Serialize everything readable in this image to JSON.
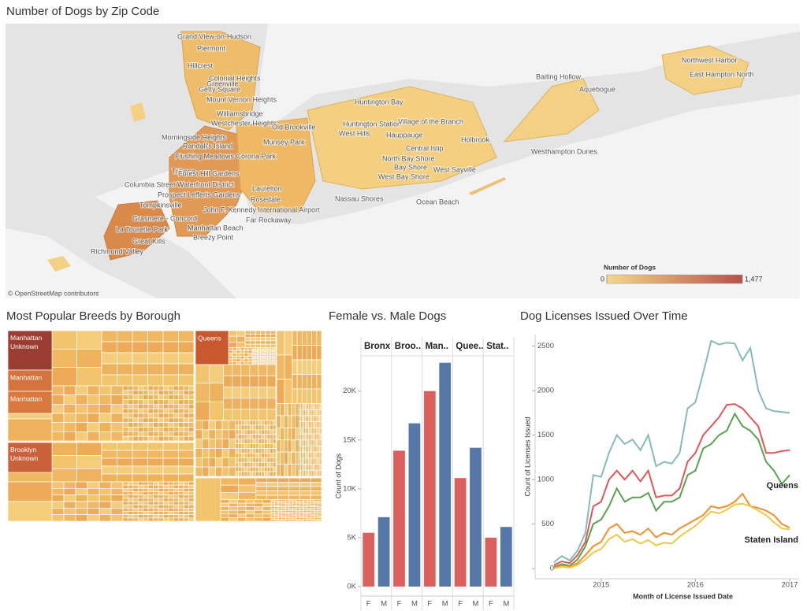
{
  "chart_data": [
    {
      "type": "map",
      "title": "Number of Dogs by Zip Code",
      "places": [
        "Grand View-on-Hudson",
        "Piermont",
        "Greenville",
        "Hillcrest",
        "Colonial Heights",
        "Getty Square",
        "Mount Vernon Heights",
        "Williamsbridge",
        "Westchester Heights",
        "Morningside Heights",
        "Randall's Island",
        "Flushing Meadows Corona Park",
        "Tribeca",
        "Forest Hill Gardens",
        "Columbia Street Waterfront District",
        "Prospect Lefferts Gardens",
        "Tompkinsville",
        "Grasmere - Concord",
        "La Tourette Park",
        "Great Kills",
        "Richmond Valley",
        "John F. Kennedy International Airport",
        "Rosedale",
        "Laurelton",
        "Far Rockaway",
        "Manhattan Beach",
        "Breezy Point",
        "Munsey Park",
        "Old Brookville",
        "Huntington Bay",
        "Huntington Station",
        "West Hills",
        "Village of the Branch",
        "Hauppauge",
        "Central Islip",
        "Holbrook",
        "North Bay Shore",
        "Bay Shore",
        "West Bay Shore",
        "West Sayville",
        "Nassau Shores",
        "Ocean Beach",
        "Westhampton Dunes",
        "Baiting Hollow",
        "Aquebogue",
        "Northwest Harbor",
        "East Hampton North"
      ],
      "attribution": "© OpenStreetMap contributors",
      "legend_title": "Number of Dogs",
      "color_range": [
        "#f5d78a",
        "#b5524a"
      ],
      "color_scale": [
        0,
        {
          "value": 1477,
          "label": "1,477"
        }
      ]
    },
    {
      "type": "treemap",
      "title": "Most Popular Breeds by Borough",
      "labels": [
        "Manhattan Unknown",
        "Manhattan",
        "Manhattan",
        "Queens",
        "Brooklyn Unknown"
      ]
    },
    {
      "type": "bar",
      "title": "Female vs. Male Dogs",
      "categories": [
        "Bronx",
        "Broo..",
        "Man..",
        "Quee..",
        "Stat.."
      ],
      "series": [
        {
          "name": "F",
          "color": "#d9605c",
          "values": [
            5500,
            13900,
            20000,
            11100,
            5000
          ]
        },
        {
          "name": "M",
          "color": "#5578a8",
          "values": [
            7100,
            16700,
            22900,
            14200,
            6100
          ]
        }
      ],
      "y_label": "Count of Dogs",
      "ylim": [
        -970,
        23600
      ],
      "yticks": [
        {
          "value": 0,
          "label": "0K"
        },
        {
          "value": 5000,
          "label": "5K"
        },
        {
          "value": 10000,
          "label": "10K"
        },
        {
          "value": 15000,
          "label": "15K"
        },
        {
          "value": 20000,
          "label": "20K"
        }
      ]
    },
    {
      "type": "line",
      "title": "Dog Licenses Issued Over Time",
      "x": [
        2014.5,
        2014.583,
        2014.667,
        2014.75,
        2014.833,
        2014.917,
        2015,
        2015.083,
        2015.167,
        2015.25,
        2015.333,
        2015.417,
        2015.5,
        2015.583,
        2015.667,
        2015.75,
        2015.833,
        2015.917,
        2016,
        2016.083,
        2016.167,
        2016.25,
        2016.333,
        2016.417,
        2016.5,
        2016.583,
        2016.667,
        2016.75,
        2016.833,
        2016.917,
        2017
      ],
      "series": [
        {
          "color": "#86bcb6",
          "values": [
            70,
            140,
            90,
            200,
            400,
            1050,
            1030,
            1300,
            1500,
            1400,
            1450,
            1330,
            1500,
            1150,
            1200,
            1180,
            1300,
            1800,
            1870,
            2200,
            2560,
            2520,
            2540,
            2530,
            2340,
            2480,
            2000,
            1800,
            1770,
            1760,
            1750
          ]
        },
        {
          "color": "#e15759",
          "values": [
            40,
            80,
            60,
            150,
            300,
            700,
            750,
            1000,
            1100,
            1000,
            1100,
            980,
            1100,
            800,
            820,
            820,
            900,
            1200,
            1300,
            1500,
            1600,
            1700,
            1840,
            1850,
            1800,
            1700,
            1600,
            1300,
            1300,
            1320,
            1330
          ]
        },
        {
          "name": "Queens",
          "color": "#59a14f",
          "values": [
            20,
            50,
            30,
            100,
            250,
            500,
            550,
            700,
            900,
            750,
            800,
            800,
            850,
            650,
            750,
            750,
            800,
            1050,
            1100,
            1350,
            1400,
            1500,
            1550,
            1740,
            1600,
            1550,
            1450,
            1200,
            1100,
            950,
            1050
          ]
        },
        {
          "color": "#f28e2b",
          "values": [
            10,
            30,
            20,
            60,
            150,
            250,
            300,
            450,
            500,
            400,
            420,
            380,
            450,
            350,
            400,
            380,
            450,
            500,
            550,
            600,
            700,
            680,
            700,
            750,
            840,
            700,
            680,
            650,
            600,
            500,
            460
          ]
        },
        {
          "name": "Staten Island",
          "color": "#edc948",
          "values": [
            0,
            20,
            10,
            40,
            100,
            180,
            220,
            330,
            380,
            300,
            330,
            280,
            320,
            260,
            290,
            280,
            360,
            420,
            480,
            560,
            640,
            620,
            660,
            720,
            730,
            700,
            650,
            600,
            520,
            450,
            440
          ]
        }
      ],
      "x_label": "Month of License Issued Date",
      "y_label": "Count of Licenses Issued",
      "xlim": [
        2014.3,
        2017.1
      ],
      "xticks": [
        2015,
        2016,
        2017
      ],
      "ylim": [
        -115,
        2630
      ],
      "yticks": [
        0,
        500,
        1000,
        1500,
        2000,
        2500
      ]
    }
  ]
}
